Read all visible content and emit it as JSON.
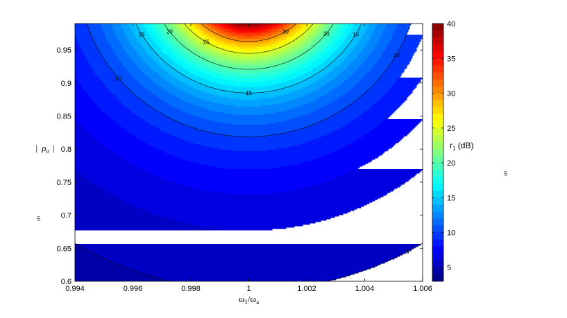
{
  "chart_data": {
    "type": "heatmap",
    "subtype": "filled-contour",
    "title": "",
    "xlabel": "ω",
    "xlabel_sub1": "1",
    "xlabel_slash": "/ω",
    "xlabel_sub2": "a",
    "ylabel_bar_left": "|",
    "ylabel": "ρ",
    "ylabel_sub": "σ",
    "ylabel_bar_right": "|",
    "xlim": [
      0.994,
      1.006
    ],
    "ylim": [
      0.6,
      0.99
    ],
    "xticks": [
      "0.994",
      "0.996",
      "0.998",
      "1",
      "1.002",
      "1.004",
      "1.006"
    ],
    "yticks": [
      "0.6",
      "0.65",
      "0.7",
      "0.75",
      "0.8",
      "0.85",
      "0.9",
      "0.95"
    ],
    "colorbar": {
      "label": "r",
      "label_sub": "1",
      "label_unit": " (dB)",
      "range": [
        3,
        40
      ],
      "ticks": [
        "5",
        "10",
        "15",
        "20",
        "25",
        "30",
        "35",
        "40"
      ],
      "colormap": "jet"
    },
    "contour_lines": [
      {
        "level": 5,
        "labels": [
          "5",
          "5",
          "5",
          "5"
        ]
      },
      {
        "level": 10,
        "labels": [
          "10",
          "10",
          "10",
          "10"
        ]
      },
      {
        "level": 15,
        "labels": [
          "15",
          "15",
          "15"
        ]
      },
      {
        "level": 20,
        "labels": [
          "20",
          "20"
        ]
      },
      {
        "level": 25,
        "labels": [
          "25"
        ]
      },
      {
        "level": 30,
        "labels": [
          "30"
        ]
      }
    ],
    "surface": {
      "peak_value": 40,
      "peak_at": {
        "x": 1.0,
        "y": 0.99
      },
      "value_at_corner": 3,
      "max_along_y_at_x1": {
        "0.6": 10.9,
        "0.72": 10,
        "0.83": 15,
        "0.93": 20,
        "0.96": 25,
        "0.975": 30
      }
    }
  }
}
